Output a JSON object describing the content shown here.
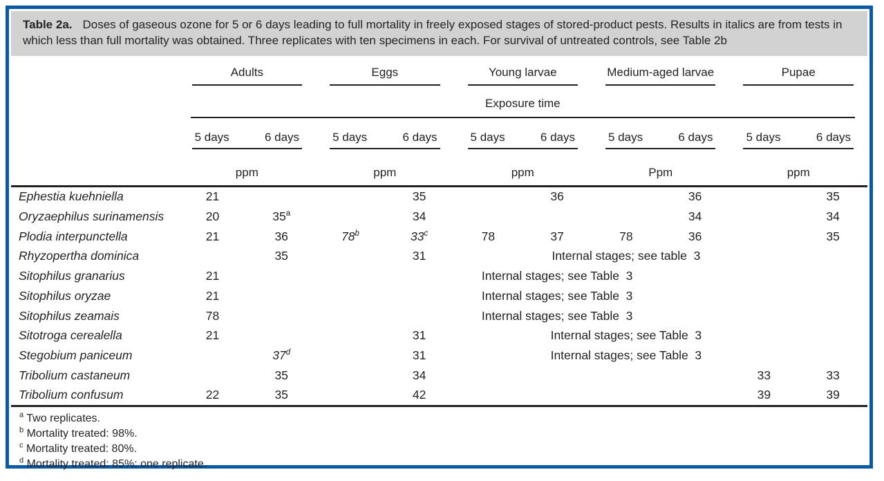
{
  "caption": {
    "label": "Table 2a.",
    "text": "Doses of gaseous ozone for 5 or 6 days leading to full mortality in freely exposed stages of stored-product pests. Results in italics are from tests in which less than full mortality was obtained. Three replicates with ten specimens in each. For survival of untreated controls, see Table 2b"
  },
  "header": {
    "groups": [
      "Adults",
      "Eggs",
      "Young larvae",
      "Medium-aged larvae",
      "Pupae"
    ],
    "exposure_label": "Exposure time",
    "day_labels": [
      "5 days",
      "6 days"
    ],
    "unit_labels": [
      "ppm",
      "ppm",
      "ppm",
      "Ppm",
      "ppm"
    ]
  },
  "rows": [
    {
      "species": "Ephestia kuehniella",
      "cells": [
        "21",
        "",
        "",
        "35",
        "",
        "36",
        "",
        "36",
        "",
        "35"
      ]
    },
    {
      "species": "Oryzaephilus surinamensis",
      "cells": [
        "20",
        {
          "v": "35",
          "sup": "a"
        },
        "",
        "34",
        "",
        "",
        "",
        "34",
        "",
        "34"
      ]
    },
    {
      "species": "Plodia interpunctella",
      "cells": [
        "21",
        "36",
        {
          "v": "78",
          "sup": "b",
          "italic": true
        },
        {
          "v": "33",
          "sup": "c",
          "italic": true
        },
        "78",
        "37",
        "78",
        "36",
        "",
        "35"
      ]
    },
    {
      "species": "Rhyzopertha dominica",
      "cells": [
        "",
        "35",
        "",
        "31",
        "",
        {
          "v": "Internal stages; see table  3",
          "span": 3
        },
        "",
        ""
      ]
    },
    {
      "species": "Sitophilus granarius",
      "cells": [
        "21",
        "",
        "",
        {
          "v": "Internal stages; see Table  3",
          "span": 5
        },
        "",
        ""
      ]
    },
    {
      "species": "Sitophilus oryzae",
      "cells": [
        "21",
        "",
        "",
        {
          "v": "Internal stages; see Table  3",
          "span": 5
        },
        "",
        ""
      ]
    },
    {
      "species": "Sitophilus zeamais",
      "cells": [
        "78",
        "",
        "",
        {
          "v": "Internal stages; see Table  3",
          "span": 5
        },
        "",
        ""
      ]
    },
    {
      "species": "Sitotroga cerealella",
      "cells": [
        "21",
        "",
        "",
        "31",
        "",
        {
          "v": "Internal stages; see Table  3",
          "span": 3
        },
        "",
        ""
      ]
    },
    {
      "species": "Stegobium paniceum",
      "cells": [
        "",
        {
          "v": "37",
          "sup": "d",
          "italic": true
        },
        "",
        "31",
        "",
        {
          "v": "Internal stages; see Table  3",
          "span": 3
        },
        "",
        ""
      ]
    },
    {
      "species": "Tribolium castaneum",
      "cells": [
        "",
        "35",
        "",
        "34",
        "",
        "",
        "",
        "",
        "33",
        "33"
      ]
    },
    {
      "species": "Tribolium confusum",
      "cells": [
        "22",
        "35",
        "",
        "42",
        "",
        "",
        "",
        "",
        "39",
        "39"
      ]
    }
  ],
  "footnotes": [
    {
      "marker": "a",
      "text": "Two replicates."
    },
    {
      "marker": "b",
      "text": "Mortality treated: 98%."
    },
    {
      "marker": "c",
      "text": "Mortality treated: 80%."
    },
    {
      "marker": "d",
      "text": "Mortality treated: 85%; one replicate."
    }
  ],
  "colors": {
    "frame_blue": "#0a5aa6",
    "caption_bg": "#d2d2d2",
    "text": "#231f20"
  }
}
